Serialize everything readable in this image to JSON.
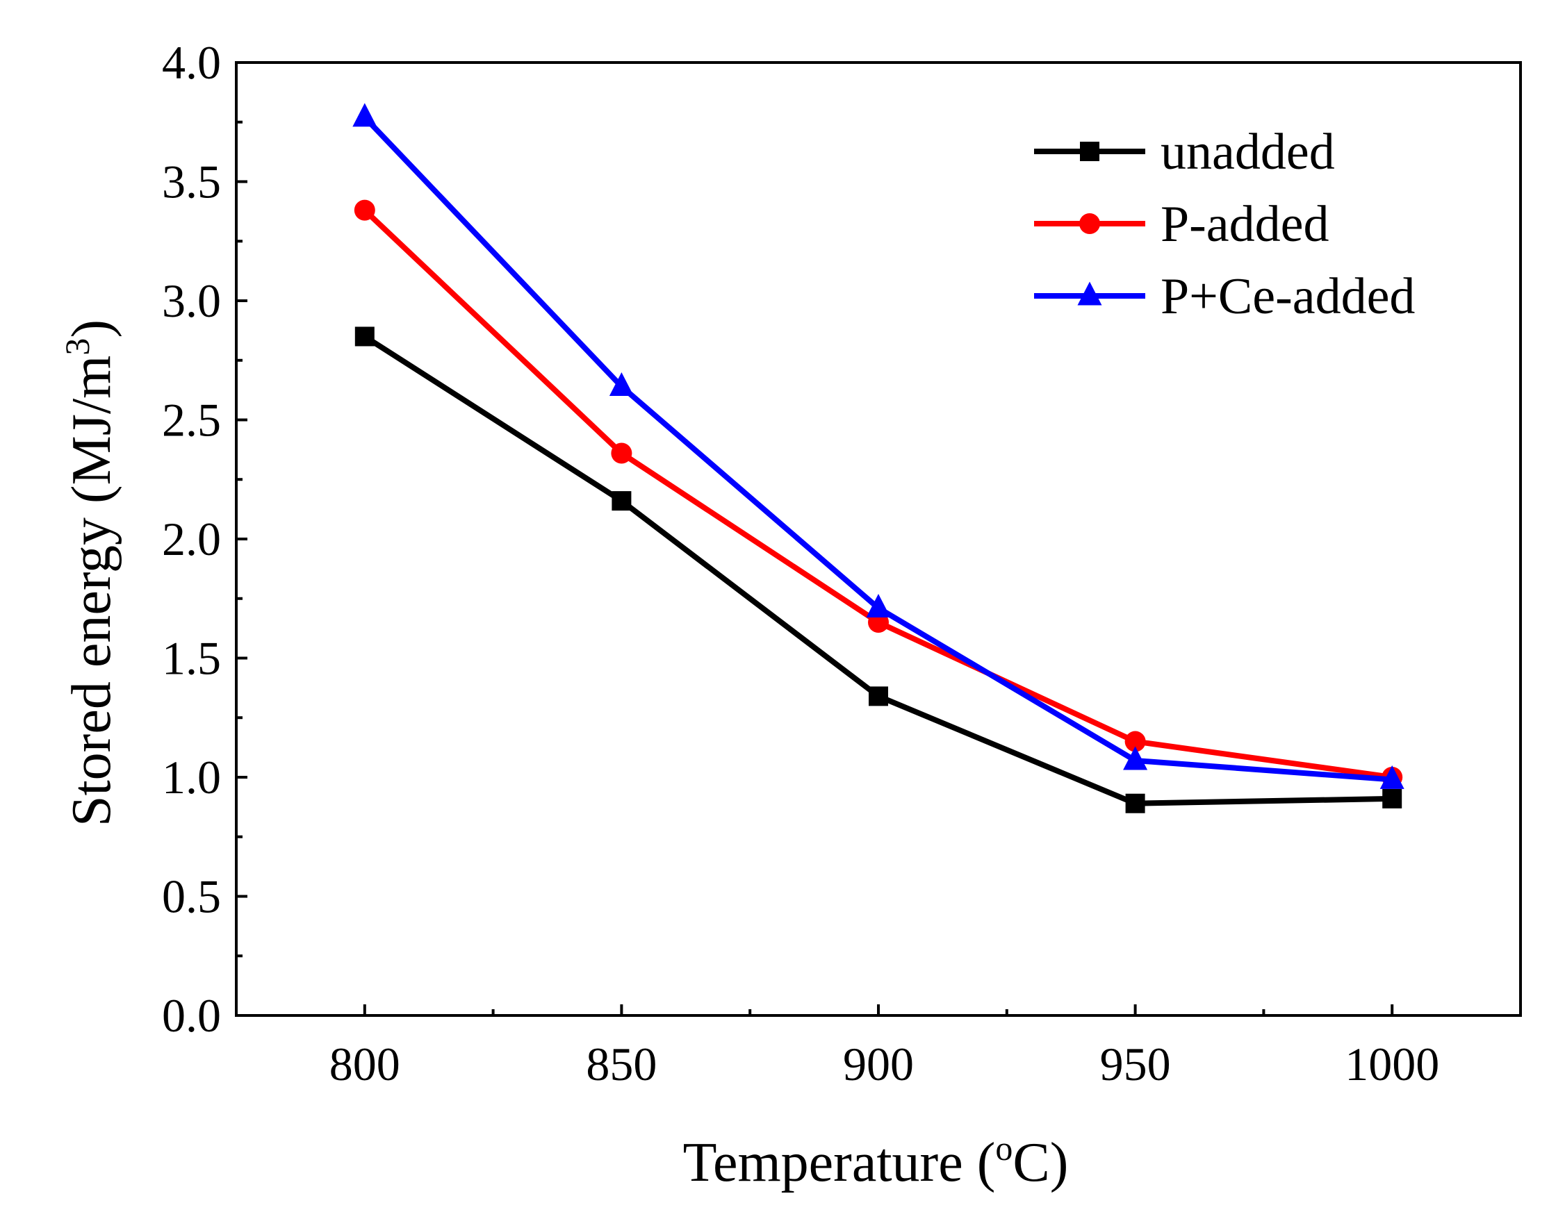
{
  "chart_data": {
    "type": "line",
    "title": "",
    "xlabel": "Temperature (",
    "xlabel_degree": "o",
    "xlabel_unit": "C)",
    "ylabel": "Stored energy (MJ/m",
    "ylabel_superscript": "3",
    "ylabel_close": ")",
    "x": [
      800,
      850,
      900,
      950,
      1000
    ],
    "xlim": [
      775,
      1025
    ],
    "ylim": [
      0,
      4.0
    ],
    "x_ticks": [
      "800",
      "850",
      "900",
      "950",
      "1000"
    ],
    "y_ticks": [
      "0.0",
      "0.5",
      "1.0",
      "1.5",
      "2.0",
      "2.5",
      "3.0",
      "3.5",
      "4.0"
    ],
    "grid": false,
    "legend_position": "top-right",
    "series": [
      {
        "name": "unadded",
        "color": "#000000",
        "marker": "square",
        "values": [
          2.85,
          2.16,
          1.34,
          0.89,
          0.91
        ]
      },
      {
        "name": "P-added",
        "color": "#ff0000",
        "marker": "circle",
        "values": [
          3.38,
          2.36,
          1.65,
          1.15,
          1.0
        ]
      },
      {
        "name": "P+Ce-added",
        "color": "#0000ff",
        "marker": "triangle",
        "values": [
          3.77,
          2.64,
          1.71,
          1.07,
          0.99
        ]
      }
    ]
  }
}
